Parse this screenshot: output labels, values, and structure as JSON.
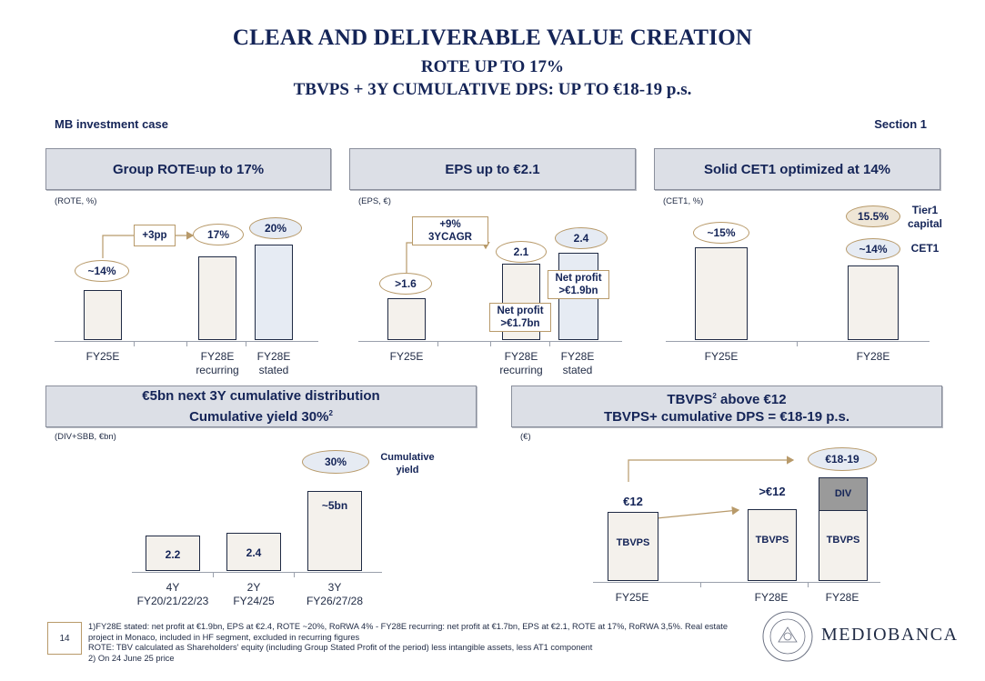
{
  "header": {
    "title": "CLEAR AND DELIVERABLE VALUE CREATION",
    "subtitle1": "ROTE UP TO 17%",
    "subtitle2": "TBVPS + 3Y CUMULATIVE DPS: UP TO €18-19 p.s."
  },
  "top_left_label": "MB investment case",
  "top_right_label": "Section 1",
  "panels": {
    "rote": {
      "heading": "Group ROTE",
      "heading_sup": "1",
      "heading_tail": " up to 17%",
      "unit": "(ROTE, %)",
      "categories": [
        "FY25E",
        "FY28E\nrecurring",
        "FY28E\nstated"
      ],
      "pills": [
        "~14%",
        "17%",
        "20%"
      ],
      "arrow_label": "+3pp"
    },
    "eps": {
      "heading": "EPS up to €2.1",
      "unit": "(EPS, €)",
      "categories": [
        "FY25E",
        "FY28E\nrecurring",
        "FY28E\nstated"
      ],
      "pills": [
        ">1.6",
        "2.1",
        "2.4"
      ],
      "arrow_label": "+9%\n3YCAGR",
      "net_profit_recurring": "Net profit\n>€1.7bn",
      "net_profit_stated": "Net profit\n>€1.9bn"
    },
    "cet1": {
      "heading": "Solid CET1 optimized at 14%",
      "unit": "(CET1, %)",
      "categories": [
        "FY25E",
        "FY28E"
      ],
      "pills": [
        "~15%",
        "15.5%",
        "~14%"
      ],
      "tier1_label": "Tier1\ncapital",
      "cet1_label": "CET1"
    },
    "distribution": {
      "heading_line1": "€5bn next 3Y cumulative distribution",
      "heading_line2": "Cumulative yield 30%",
      "heading_sup": "2",
      "unit": "(DIV+SBB, €bn)",
      "categories": [
        "4Y\nFY20/21/22/23",
        "2Y\nFY24/25",
        "3Y\nFY26/27/28"
      ],
      "bar_labels": [
        "2.2",
        "2.4",
        "~5bn"
      ],
      "yield_pill": "30%",
      "yield_label": "Cumulative\nyield"
    },
    "tbvps": {
      "heading_line1_a": "TBVPS",
      "heading_sup": "2",
      "heading_line1_b": " above €12",
      "heading_line2": "TBVPS+ cumulative DPS = €18-19 p.s.",
      "unit": "(€)",
      "categories": [
        "FY25E",
        "FY28E",
        "FY28E"
      ],
      "top_labels": [
        "€12",
        ">€12"
      ],
      "pill": "€18-19",
      "bar_labels": [
        "TBVPS",
        "TBVPS",
        "TBVPS"
      ],
      "div_label": "DIV"
    }
  },
  "chart_data": [
    {
      "type": "bar",
      "title": "Group ROTE up to 17%",
      "ylabel": "(ROTE, %)",
      "categories": [
        "FY25E",
        "FY28E recurring",
        "FY28E stated"
      ],
      "values": [
        14,
        17,
        20
      ]
    },
    {
      "type": "bar",
      "title": "EPS up to €2.1",
      "ylabel": "(EPS, €)",
      "categories": [
        "FY25E",
        "FY28E recurring",
        "FY28E stated"
      ],
      "values": [
        1.6,
        2.1,
        2.4
      ]
    },
    {
      "type": "bar",
      "title": "Solid CET1 optimized at 14%",
      "ylabel": "(CET1, %)",
      "categories": [
        "FY25E",
        "FY28E"
      ],
      "values": [
        15,
        14
      ]
    },
    {
      "type": "bar",
      "title": "€5bn next 3Y cumulative distribution",
      "ylabel": "(DIV+SBB, €bn)",
      "categories": [
        "4Y FY20/21/22/23",
        "2Y FY24/25",
        "3Y FY26/27/28"
      ],
      "values": [
        2.2,
        2.4,
        5
      ]
    },
    {
      "type": "bar",
      "title": "TBVPS above €12",
      "ylabel": "(€)",
      "categories": [
        "FY25E",
        "FY28E",
        "FY28E"
      ],
      "values": [
        12,
        12,
        18.5
      ]
    }
  ],
  "footer": {
    "page_number": "14",
    "note1": "1)FY28E stated: net profit at €1.9bn, EPS at €2.4, ROTE ~20%, RoRWA 4% - FY28E recurring: net profit at €1.7bn, EPS at €2.1, ROTE at 17%, RoRWA 3,5%. Real estate",
    "note1b": "project in Monaco, included in HF segment, excluded in recurring figures",
    "note2": "ROTE: TBV calculated as Shareholders' equity (including Group Stated Profit of the period) less intangible assets, less AT1 component",
    "note3": "2) On  24 June 25 price",
    "brand": "MEDIOBANCA"
  },
  "colors": {
    "navy": "#142457",
    "gold": "#b89a6a",
    "panel_gray": "#dcdfe6",
    "bar_beige": "#f4f1ec",
    "bar_blue": "#e6ebf3"
  }
}
